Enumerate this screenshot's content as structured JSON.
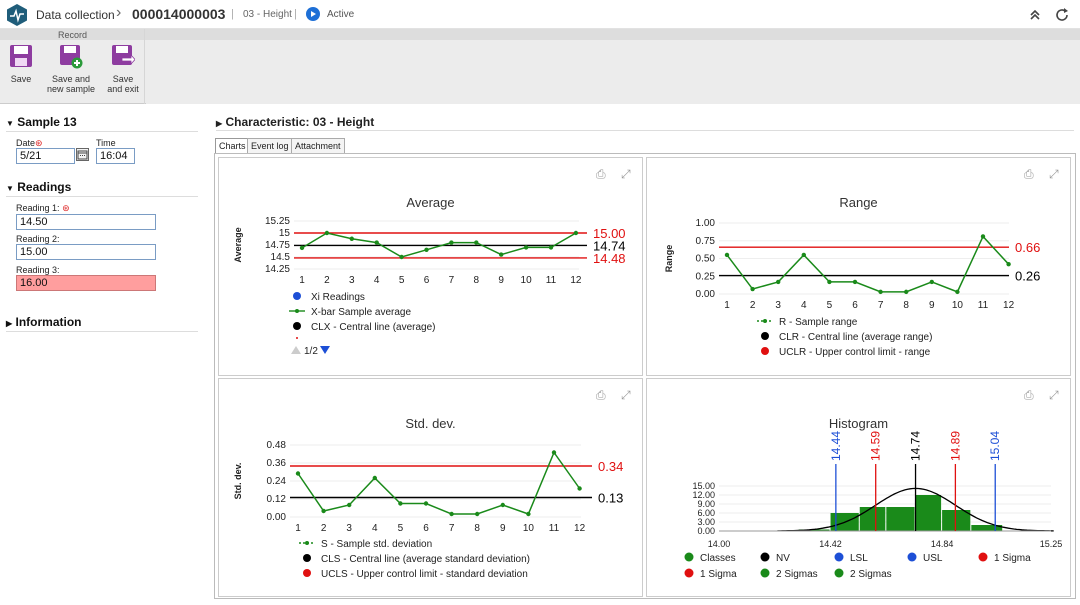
{
  "header": {
    "app_title": "Data collection",
    "document_id": "000014000003",
    "characteristic": "03 - Height",
    "status": "Active"
  },
  "ribbon": {
    "group_title": "Record",
    "save": "Save",
    "save_new_1": "Save and",
    "save_new_2": "new sample",
    "save_exit_1": "Save",
    "save_exit_2": "and exit"
  },
  "sample": {
    "title": "Sample 13",
    "date_label": "Date",
    "date_value": "5/21",
    "time_label": "Time",
    "time_value": "16:04"
  },
  "readings": {
    "title": "Readings",
    "items": [
      {
        "label": "Reading 1:",
        "value": "14.50",
        "required": true
      },
      {
        "label": "Reading 2:",
        "value": "15.00",
        "required": false
      },
      {
        "label": "Reading 3:",
        "value": "16.00",
        "required": false
      }
    ]
  },
  "information": {
    "title": "Information"
  },
  "main": {
    "title": "Characteristic: 03 - Height",
    "tabs": [
      "Charts",
      "Event log",
      "Attachment"
    ]
  },
  "colors": {
    "green": "#1a8a1a",
    "red": "#e01010",
    "blue": "#1d4fd6",
    "error_bg": "#ff9e9e"
  },
  "chart_data": [
    {
      "type": "line",
      "title": "Average",
      "ylabel": "Average",
      "x": [
        1,
        2,
        3,
        4,
        5,
        6,
        7,
        8,
        9,
        10,
        11,
        12
      ],
      "y_ticks": [
        "15.25",
        "15",
        "14.75",
        "14.5",
        "14.25"
      ],
      "ylim": [
        14.25,
        15.25
      ],
      "series": [
        {
          "name": "X-bar Sample average",
          "values": [
            14.69,
            15.0,
            14.88,
            14.8,
            14.5,
            14.65,
            14.8,
            14.8,
            14.55,
            14.7,
            14.7,
            15.0
          ]
        }
      ],
      "limits": [
        {
          "label": "15.00",
          "value": 15.0,
          "color": "red"
        },
        {
          "label": "14.74",
          "value": 14.74,
          "color": "black"
        },
        {
          "label": "14.48",
          "value": 14.48,
          "color": "red"
        }
      ],
      "legend": [
        "Xi Readings",
        "X-bar Sample average",
        "CLX - Central line (average)"
      ],
      "pager": "1/2"
    },
    {
      "type": "line",
      "title": "Range",
      "ylabel": "Range",
      "x": [
        1,
        2,
        3,
        4,
        5,
        6,
        7,
        8,
        9,
        10,
        11,
        12
      ],
      "y_ticks": [
        "1.00",
        "0.75",
        "0.50",
        "0.25",
        "0.00"
      ],
      "ylim": [
        0,
        1
      ],
      "series": [
        {
          "name": "R - Sample range",
          "values": [
            0.55,
            0.07,
            0.17,
            0.55,
            0.17,
            0.17,
            0.03,
            0.03,
            0.17,
            0.03,
            0.81,
            0.42
          ]
        }
      ],
      "limits": [
        {
          "label": "0.66",
          "value": 0.66,
          "color": "red"
        },
        {
          "label": "0.26",
          "value": 0.26,
          "color": "black"
        }
      ],
      "legend": [
        "R - Sample range",
        "CLR - Central line (average range)",
        "UCLR - Upper control limit - range"
      ]
    },
    {
      "type": "line",
      "title": "Std. dev.",
      "ylabel": "Std. dev.",
      "x": [
        1,
        2,
        3,
        4,
        5,
        6,
        7,
        8,
        9,
        10,
        11,
        12
      ],
      "y_ticks": [
        "0.48",
        "0.36",
        "0.24",
        "0.12",
        "0.00"
      ],
      "ylim": [
        0,
        0.48
      ],
      "series": [
        {
          "name": "S - Sample std. deviation",
          "values": [
            0.29,
            0.04,
            0.08,
            0.26,
            0.09,
            0.09,
            0.02,
            0.02,
            0.08,
            0.02,
            0.43,
            0.19
          ]
        }
      ],
      "limits": [
        {
          "label": "0.34",
          "value": 0.34,
          "color": "red"
        },
        {
          "label": "0.13",
          "value": 0.13,
          "color": "black"
        }
      ],
      "legend": [
        "S - Sample std. deviation",
        "CLS - Central line (average standard deviation)",
        "UCLS - Upper control limit - standard deviation"
      ]
    },
    {
      "type": "bar",
      "title": "Histogram",
      "x_ticks": [
        "14.00",
        "14.42",
        "14.84",
        "15.25"
      ],
      "y_ticks": [
        "15.00",
        "12.00",
        "9.00",
        "6.00",
        "3.00",
        "0.00"
      ],
      "ylim": [
        0,
        15
      ],
      "xlim": [
        14.0,
        15.25
      ],
      "bins": [
        {
          "from": 14.3,
          "to": 14.42,
          "value": 0.5
        },
        {
          "from": 14.42,
          "to": 14.53,
          "value": 6
        },
        {
          "from": 14.53,
          "to": 14.63,
          "value": 8
        },
        {
          "from": 14.63,
          "to": 14.74,
          "value": 8
        },
        {
          "from": 14.74,
          "to": 14.84,
          "value": 12
        },
        {
          "from": 14.84,
          "to": 14.95,
          "value": 7
        },
        {
          "from": 14.95,
          "to": 15.07,
          "value": 2
        }
      ],
      "markers": [
        {
          "label": "14.44",
          "value": 14.44,
          "color": "blue"
        },
        {
          "label": "14.59",
          "value": 14.59,
          "color": "red"
        },
        {
          "label": "14.74",
          "value": 14.74,
          "color": "black"
        },
        {
          "label": "14.89",
          "value": 14.89,
          "color": "red"
        },
        {
          "label": "15.04",
          "value": 15.04,
          "color": "blue"
        }
      ],
      "legend": [
        {
          "label": "Classes",
          "color": "green"
        },
        {
          "label": "NV",
          "color": "black"
        },
        {
          "label": "LSL",
          "color": "blue"
        },
        {
          "label": "USL",
          "color": "blue"
        },
        {
          "label": "1 Sigma",
          "color": "red"
        },
        {
          "label": "1 Sigma",
          "color": "red"
        },
        {
          "label": "2 Sigmas",
          "color": "green"
        },
        {
          "label": "2 Sigmas",
          "color": "green"
        }
      ]
    }
  ]
}
